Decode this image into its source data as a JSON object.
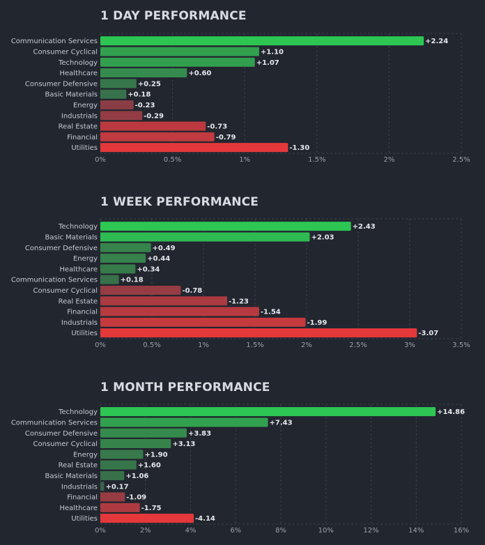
{
  "chart_data": [
    {
      "type": "bar",
      "orientation": "horizontal",
      "title": "1 DAY PERFORMANCE",
      "categories": [
        "Communication Services",
        "Consumer Cyclical",
        "Technology",
        "Healthcare",
        "Consumer Defensive",
        "Basic Materials",
        "Energy",
        "Industrials",
        "Real Estate",
        "Financial",
        "Utilities"
      ],
      "values": [
        2.24,
        1.1,
        1.07,
        0.6,
        0.25,
        0.18,
        -0.23,
        -0.29,
        -0.73,
        -0.79,
        -1.3
      ],
      "value_labels": [
        "+2.24",
        "+1.10",
        "+1.07",
        "+0.60",
        "+0.25",
        "+0.18",
        "-0.23",
        "-0.29",
        "-0.73",
        "-0.79",
        "-1.30"
      ],
      "xlim": [
        0,
        2.5
      ],
      "xticks": [
        0,
        0.5,
        1,
        1.5,
        2,
        2.5
      ],
      "xtick_labels": [
        "0%",
        "0.5%",
        "1%",
        "1.5%",
        "2%",
        "2.5%"
      ],
      "bar_length": "absolute value",
      "grid": true,
      "legend": "none",
      "colors": {
        "positive": "#2dc653",
        "positive_dim": "#3b5a48",
        "negative": "#e5383b",
        "negative_dim": "#5a3f4a"
      }
    },
    {
      "type": "bar",
      "orientation": "horizontal",
      "title": "1 WEEK PERFORMANCE",
      "categories": [
        "Technology",
        "Basic Materials",
        "Consumer Defensive",
        "Energy",
        "Healthcare",
        "Communication Services",
        "Consumer Cyclical",
        "Real Estate",
        "Financial",
        "Industrials",
        "Utilities"
      ],
      "values": [
        2.43,
        2.03,
        0.49,
        0.44,
        0.34,
        0.18,
        -0.78,
        -1.23,
        -1.54,
        -1.99,
        -3.07
      ],
      "value_labels": [
        "+2.43",
        "+2.03",
        "+0.49",
        "+0.44",
        "+0.34",
        "+0.18",
        "-0.78",
        "-1.23",
        "-1.54",
        "-1.99",
        "-3.07"
      ],
      "xlim": [
        0,
        3.5
      ],
      "xticks": [
        0,
        0.5,
        1,
        1.5,
        2,
        2.5,
        3,
        3.5
      ],
      "xtick_labels": [
        "0%",
        "0.5%",
        "1%",
        "1.5%",
        "2%",
        "2.5%",
        "3%",
        "3.5%"
      ],
      "bar_length": "absolute value",
      "grid": true,
      "legend": "none",
      "colors": {
        "positive": "#2dc653",
        "positive_dim": "#3b5a48",
        "negative": "#e5383b",
        "negative_dim": "#5a3f4a"
      }
    },
    {
      "type": "bar",
      "orientation": "horizontal",
      "title": "1 MONTH PERFORMANCE",
      "categories": [
        "Technology",
        "Communication Services",
        "Consumer Defensive",
        "Consumer Cyclical",
        "Energy",
        "Real Estate",
        "Basic Materials",
        "Industrials",
        "Financial",
        "Healthcare",
        "Utilities"
      ],
      "values": [
        14.86,
        7.43,
        3.83,
        3.13,
        1.9,
        1.6,
        1.06,
        0.17,
        -1.09,
        -1.75,
        -4.14
      ],
      "value_labels": [
        "+14.86",
        "+7.43",
        "+3.83",
        "+3.13",
        "+1.90",
        "+1.60",
        "+1.06",
        "+0.17",
        "-1.09",
        "-1.75",
        "-4.14"
      ],
      "xlim": [
        0,
        16
      ],
      "xticks": [
        0,
        2,
        4,
        6,
        8,
        10,
        12,
        14,
        16
      ],
      "xtick_labels": [
        "0%",
        "2%",
        "4%",
        "6%",
        "8%",
        "10%",
        "12%",
        "14%",
        "16%"
      ],
      "bar_length": "absolute value",
      "grid": true,
      "legend": "none",
      "colors": {
        "positive": "#2dc653",
        "positive_dim": "#3b5a48",
        "negative": "#e5383b",
        "negative_dim": "#5a3f4a"
      }
    }
  ]
}
